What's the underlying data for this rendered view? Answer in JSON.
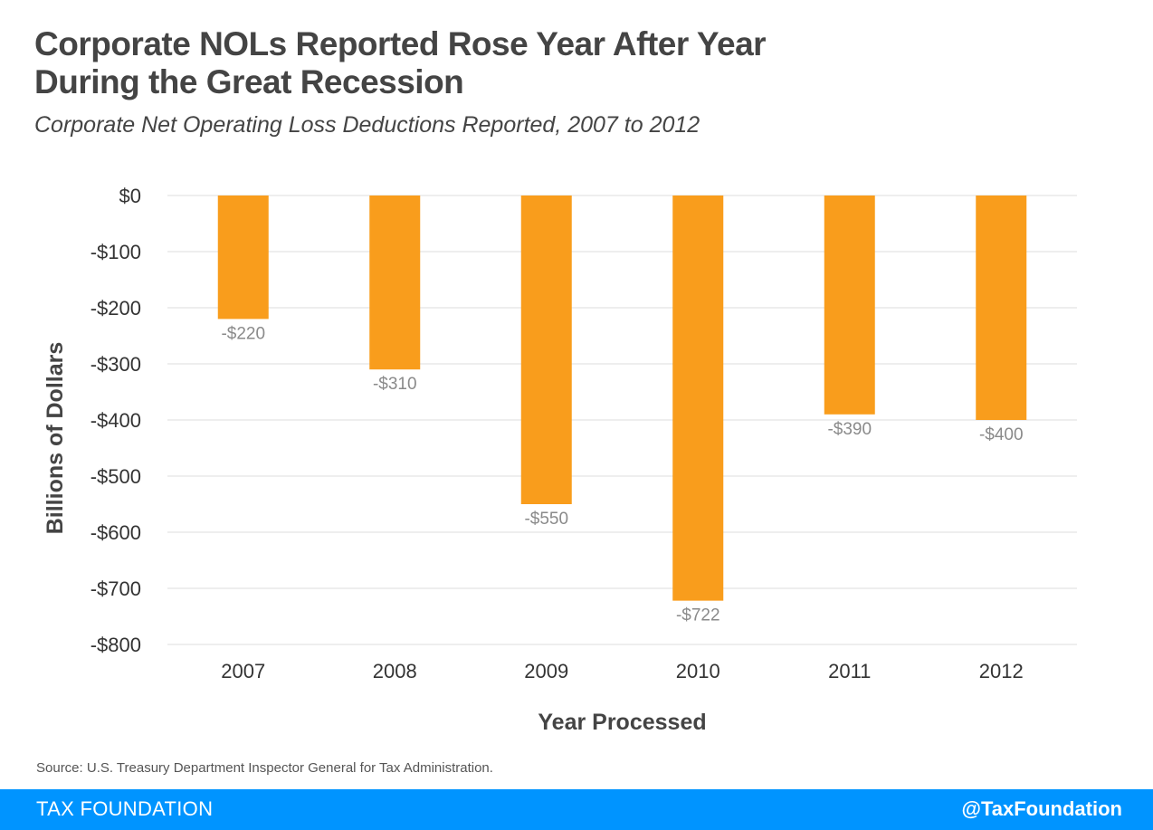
{
  "header": {
    "title_line1": "Corporate NOLs Reported Rose Year After Year",
    "title_line2": "During the Great Recession",
    "subtitle": "Corporate Net Operating Loss Deductions Reported, 2007 to 2012"
  },
  "chart_data": {
    "type": "bar",
    "categories": [
      "2007",
      "2008",
      "2009",
      "2010",
      "2011",
      "2012"
    ],
    "values": [
      -220,
      -310,
      -550,
      -722,
      -390,
      -400
    ],
    "data_labels": [
      "-$220",
      "-$310",
      "-$550",
      "-$722",
      "-$390",
      "-$400"
    ],
    "xlabel": "Year Processed",
    "ylabel": "Billions of Dollars",
    "ylim": [
      -800,
      0
    ],
    "yticks": [
      0,
      -100,
      -200,
      -300,
      -400,
      -500,
      -600,
      -700,
      -800
    ],
    "ytick_labels": [
      "$0",
      "-$100",
      "-$200",
      "-$300",
      "-$400",
      "-$500",
      "-$600",
      "-$700",
      "-$800"
    ],
    "bar_color": "#f99d1c",
    "grid": true,
    "legend": "none"
  },
  "source": "Source: U.S. Treasury Department Inspector General for Tax Administration.",
  "footer": {
    "brand": "TAX FOUNDATION",
    "handle": "@TaxFoundation",
    "color": "#0094ff"
  }
}
